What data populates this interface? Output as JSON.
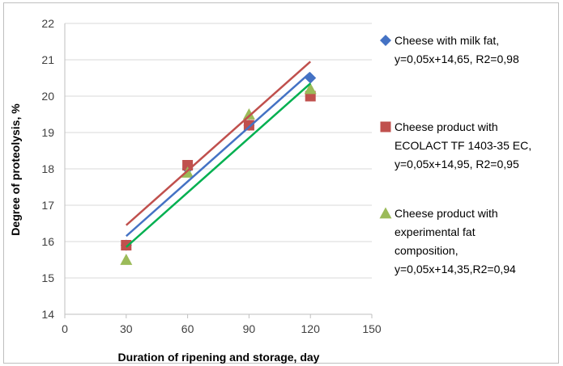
{
  "chart_data": {
    "type": "scatter",
    "xlabel": "Duration of ripening and storage, day",
    "ylabel": "Degree of proteolysis, %",
    "xlim": [
      0,
      150
    ],
    "ylim": [
      14,
      22
    ],
    "x_ticks": [
      "0",
      "30",
      "60",
      "90",
      "120",
      "150"
    ],
    "y_ticks": [
      "14",
      "15",
      "16",
      "17",
      "18",
      "19",
      "20",
      "21",
      "22"
    ],
    "grid": "horizontal",
    "legend_position": "right",
    "series": [
      {
        "name": "Cheese with milk fat,",
        "legend_lines": [
          "Cheese with milk fat,",
          "y=0,05x+14,65, R2=0,98"
        ],
        "marker": "diamond",
        "color": "#4472C4",
        "x": [
          30,
          60,
          90,
          120
        ],
        "y": [
          15.9,
          18.0,
          19.2,
          20.5
        ],
        "trendline": {
          "slope": 0.05,
          "intercept": 14.65,
          "x_range": [
            30,
            120
          ],
          "color": "#4472C4"
        }
      },
      {
        "name": "Cheese product with",
        "legend_lines": [
          "Cheese product with",
          "ECOLACT TF 1403-35 EC,",
          "y=0,05x+14,95, R2=0,95"
        ],
        "marker": "square",
        "color": "#C0504D",
        "x": [
          30,
          60,
          90,
          120
        ],
        "y": [
          15.9,
          18.1,
          19.2,
          20.0
        ],
        "trendline": {
          "slope": 0.05,
          "intercept": 14.95,
          "x_range": [
            30,
            120
          ],
          "color": "#C0504D"
        }
      },
      {
        "name": "Cheese product with",
        "legend_lines": [
          "Cheese product with",
          "experimental fat",
          "composition,",
          "y=0,05x+14,35,R2=0,94"
        ],
        "marker": "triangle",
        "color": "#9BBB59",
        "x": [
          30,
          60,
          90,
          120
        ],
        "y": [
          15.5,
          17.9,
          19.5,
          20.2
        ],
        "trendline": {
          "slope": 0.05,
          "intercept": 14.35,
          "x_range": [
            30,
            120
          ],
          "color": "#00B050"
        }
      }
    ]
  }
}
